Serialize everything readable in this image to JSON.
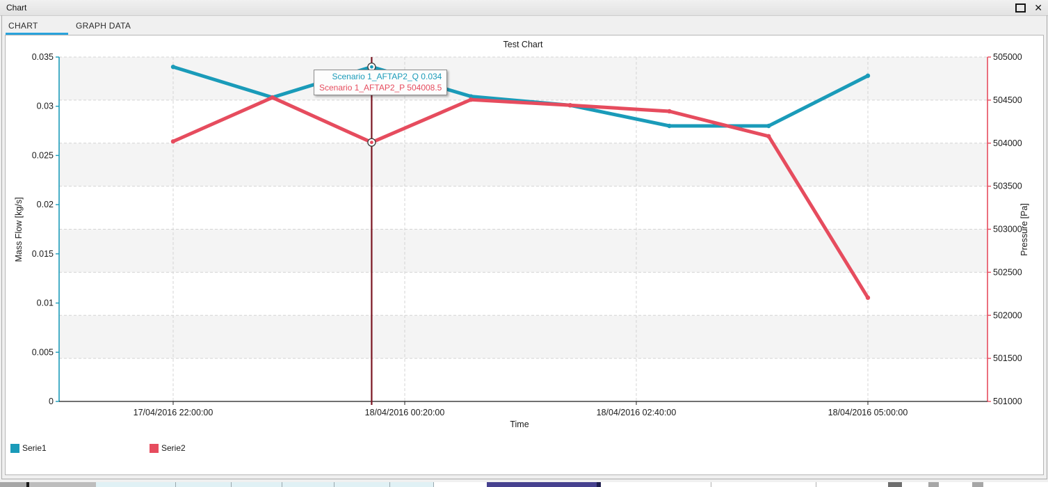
{
  "theme": {
    "accent": "#29a3dc",
    "frame": "#ababab"
  },
  "window": {
    "title": "Chart",
    "close_glyph": "✕"
  },
  "tabs": [
    {
      "label": "CHART",
      "active": true
    },
    {
      "label": "GRAPH DATA",
      "active": false
    }
  ],
  "chart_data": {
    "type": "line",
    "title": "Test Chart",
    "xlabel": "Time",
    "grid": "dashed, horizontal bands alternating",
    "legend_position": "bottom-left",
    "y_left": {
      "label": "Mass Flow [kg/s]",
      "min": 0,
      "max": 0.035,
      "ticks": [
        0,
        0.005,
        0.01,
        0.015,
        0.02,
        0.025,
        0.03,
        0.035
      ],
      "color": "#1a9bb9"
    },
    "y_right": {
      "label": "Pressure [Pa]",
      "min": 501000,
      "max": 505000,
      "ticks": [
        501000,
        501500,
        502000,
        502500,
        503000,
        503500,
        504000,
        504500,
        505000
      ],
      "color": "#e64c5e"
    },
    "x_total_minutes": 420,
    "x_ticks": [
      {
        "minutes": 0,
        "label": "17/04/2016 22:00:00"
      },
      {
        "minutes": 140,
        "label": "18/04/2016 00:20:00"
      },
      {
        "minutes": 280,
        "label": "18/04/2016 02:40:00"
      },
      {
        "minutes": 420,
        "label": "18/04/2016 05:00:00"
      }
    ],
    "series": [
      {
        "name": "Serie1",
        "axis": "left",
        "color": "#1a9bb9",
        "x_minutes": [
          0,
          60,
          120,
          180,
          240,
          300,
          360,
          420
        ],
        "values": [
          0.034,
          0.0309,
          0.034,
          0.031,
          0.0301,
          0.028,
          0.028,
          0.0331
        ]
      },
      {
        "name": "Serie2",
        "axis": "right",
        "color": "#e64c5e",
        "x_minutes": [
          0,
          60,
          120,
          180,
          240,
          300,
          360,
          420
        ],
        "values": [
          504020,
          504530,
          504008.5,
          504505,
          504440,
          504370,
          504080,
          502205
        ]
      }
    ],
    "crosshair": {
      "x_minutes": 120,
      "color": "#7b1622"
    },
    "tooltip": {
      "x_minutes": 120,
      "lines": [
        {
          "text": "Scenario 1_AFTAP2_Q 0.034",
          "color": "#1a9bb9"
        },
        {
          "text": "Scenario 1_AFTAP2_P 504008.5",
          "color": "#e64c5e"
        }
      ]
    },
    "legend": [
      {
        "label": "Serie1",
        "color": "#1a9bb9"
      },
      {
        "label": "Serie2",
        "color": "#e64c5e"
      }
    ]
  },
  "bottom_strip": {
    "segments": [
      {
        "x": 0,
        "w": 38,
        "color": "#a6a6a6"
      },
      {
        "x": 38,
        "w": 4,
        "color": "#1a1a1a"
      },
      {
        "x": 42,
        "w": 96,
        "color": "#bdbdbd"
      },
      {
        "x": 138,
        "w": 114,
        "color": "#e0f1f5"
      },
      {
        "x": 252,
        "w": 1,
        "color": "#9aa7ad"
      },
      {
        "x": 253,
        "w": 79,
        "color": "#e0f1f5"
      },
      {
        "x": 332,
        "w": 1,
        "color": "#9aa7ad"
      },
      {
        "x": 333,
        "w": 72,
        "color": "#e0f1f5"
      },
      {
        "x": 405,
        "w": 1,
        "color": "#9aa7ad"
      },
      {
        "x": 406,
        "w": 74,
        "color": "#e0f1f5"
      },
      {
        "x": 480,
        "w": 1,
        "color": "#9aa7ad"
      },
      {
        "x": 481,
        "w": 79,
        "color": "#e0f1f5"
      },
      {
        "x": 560,
        "w": 1,
        "color": "#9aa7ad"
      },
      {
        "x": 561,
        "w": 62,
        "color": "#e0f1f5"
      },
      {
        "x": 623,
        "w": 1,
        "color": "#9aa7ad"
      },
      {
        "x": 624,
        "w": 76,
        "color": "#ffffff"
      },
      {
        "x": 700,
        "w": 158,
        "color": "#46418f"
      },
      {
        "x": 858,
        "w": 6,
        "color": "#1d1d4e"
      },
      {
        "x": 864,
        "w": 158,
        "color": "#ffffff"
      },
      {
        "x": 1022,
        "w": 1,
        "color": "#b0b0b0"
      },
      {
        "x": 1023,
        "w": 150,
        "color": "#ffffff"
      },
      {
        "x": 1173,
        "w": 1,
        "color": "#b0b0b0"
      },
      {
        "x": 1174,
        "w": 103,
        "color": "#ffffff"
      },
      {
        "x": 1277,
        "w": 20,
        "color": "#6e6e6e"
      },
      {
        "x": 1297,
        "w": 38,
        "color": "#ffffff"
      },
      {
        "x": 1335,
        "w": 15,
        "color": "#a6a6a6"
      },
      {
        "x": 1350,
        "w": 48,
        "color": "#ffffff"
      },
      {
        "x": 1398,
        "w": 16,
        "color": "#a6a6a6"
      },
      {
        "x": 1414,
        "w": 93,
        "color": "#ffffff"
      }
    ]
  }
}
